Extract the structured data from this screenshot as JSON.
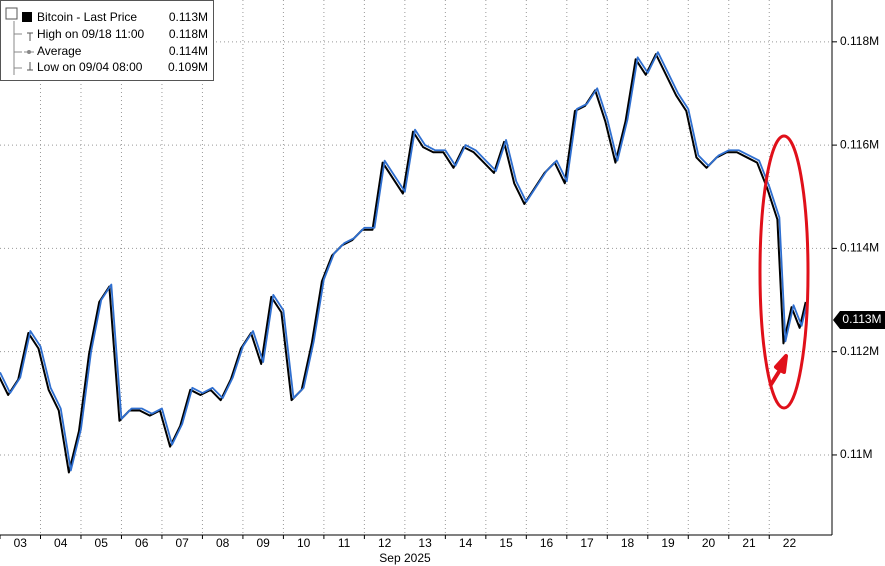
{
  "chart_data": {
    "type": "line",
    "legend": [
      {
        "label": "Bitcoin - Last Price",
        "value": "0.113M"
      },
      {
        "label": "High on 09/18 11:00",
        "value": "0.118M"
      },
      {
        "label": "Average",
        "value": "0.114M"
      },
      {
        "label": "Low on 09/04 08:00",
        "value": "0.109M"
      }
    ],
    "last_price_label": "0.113M",
    "xlabel": "Sep 2025",
    "x": [
      3,
      3.25,
      3.5,
      3.75,
      4,
      4.25,
      4.5,
      4.75,
      5,
      5.25,
      5.5,
      5.75,
      6,
      6.25,
      6.5,
      6.75,
      7,
      7.25,
      7.5,
      7.75,
      8,
      8.25,
      8.5,
      8.75,
      9,
      9.25,
      9.5,
      9.75,
      10,
      10.25,
      10.5,
      10.75,
      11,
      11.25,
      11.5,
      11.75,
      12,
      12.25,
      12.5,
      12.75,
      13,
      13.25,
      13.5,
      13.75,
      14,
      14.25,
      14.5,
      14.75,
      15,
      15.25,
      15.5,
      15.75,
      16,
      16.25,
      16.5,
      16.75,
      17,
      17.25,
      17.5,
      17.75,
      18,
      18.25,
      18.5,
      18.75,
      19,
      19.25,
      19.5,
      19.75,
      20,
      20.25,
      20.5,
      20.75,
      21,
      21.25,
      21.5,
      21.75,
      22,
      22.25,
      22.4,
      22.6,
      22.8,
      22.95
    ],
    "series": [
      {
        "name": "Bitcoin - Last Price",
        "color": "#2f6fd0",
        "values": [
          0.1116,
          0.1112,
          0.1115,
          0.1124,
          0.1121,
          0.1113,
          0.1109,
          0.1097,
          0.1105,
          0.112,
          0.113,
          0.1133,
          0.1107,
          0.1109,
          0.1109,
          0.1108,
          0.1109,
          0.1102,
          0.1106,
          0.1113,
          0.1112,
          0.1113,
          0.1111,
          0.1115,
          0.1121,
          0.1124,
          0.1118,
          0.1131,
          0.1128,
          0.1111,
          0.1113,
          0.1122,
          0.1134,
          0.1139,
          0.1141,
          0.1142,
          0.1144,
          0.1144,
          0.1157,
          0.1154,
          0.1151,
          0.1163,
          0.116,
          0.1159,
          0.1159,
          0.1156,
          0.116,
          0.1159,
          0.1157,
          0.1155,
          0.1161,
          0.1153,
          0.1149,
          0.1152,
          0.1155,
          0.1157,
          0.1153,
          0.1167,
          0.1168,
          0.1171,
          0.1165,
          0.1157,
          0.1165,
          0.1177,
          0.1174,
          0.1178,
          0.1174,
          0.117,
          0.1167,
          0.1158,
          0.1156,
          0.1158,
          0.1159,
          0.1159,
          0.1158,
          0.1157,
          0.1152,
          0.1146,
          0.1122,
          0.1129,
          0.1125,
          0.113
        ]
      }
    ],
    "xlim": [
      3,
      23.55
    ],
    "xticks": [
      {
        "value": 3,
        "label": "03"
      },
      {
        "value": 4,
        "label": "04"
      },
      {
        "value": 5,
        "label": "05"
      },
      {
        "value": 6,
        "label": "06"
      },
      {
        "value": 7,
        "label": "07"
      },
      {
        "value": 8,
        "label": "08"
      },
      {
        "value": 9,
        "label": "09"
      },
      {
        "value": 10,
        "label": "10"
      },
      {
        "value": 11,
        "label": "11"
      },
      {
        "value": 12,
        "label": "12"
      },
      {
        "value": 13,
        "label": "13"
      },
      {
        "value": 14,
        "label": "14"
      },
      {
        "value": 15,
        "label": "15"
      },
      {
        "value": 16,
        "label": "16"
      },
      {
        "value": 17,
        "label": "17"
      },
      {
        "value": 18,
        "label": "18"
      },
      {
        "value": 19,
        "label": "19"
      },
      {
        "value": 20,
        "label": "20"
      },
      {
        "value": 21,
        "label": "21"
      },
      {
        "value": 22,
        "label": "22"
      }
    ],
    "ylim": [
      0.10845,
      0.11881
    ],
    "yticks": [
      {
        "value": 0.11,
        "label": "0.11M"
      },
      {
        "value": 0.112,
        "label": "0.112M"
      },
      {
        "value": 0.114,
        "label": "0.114M"
      },
      {
        "value": 0.116,
        "label": "0.116M"
      },
      {
        "value": 0.118,
        "label": "0.118M"
      }
    ],
    "grid": true
  }
}
